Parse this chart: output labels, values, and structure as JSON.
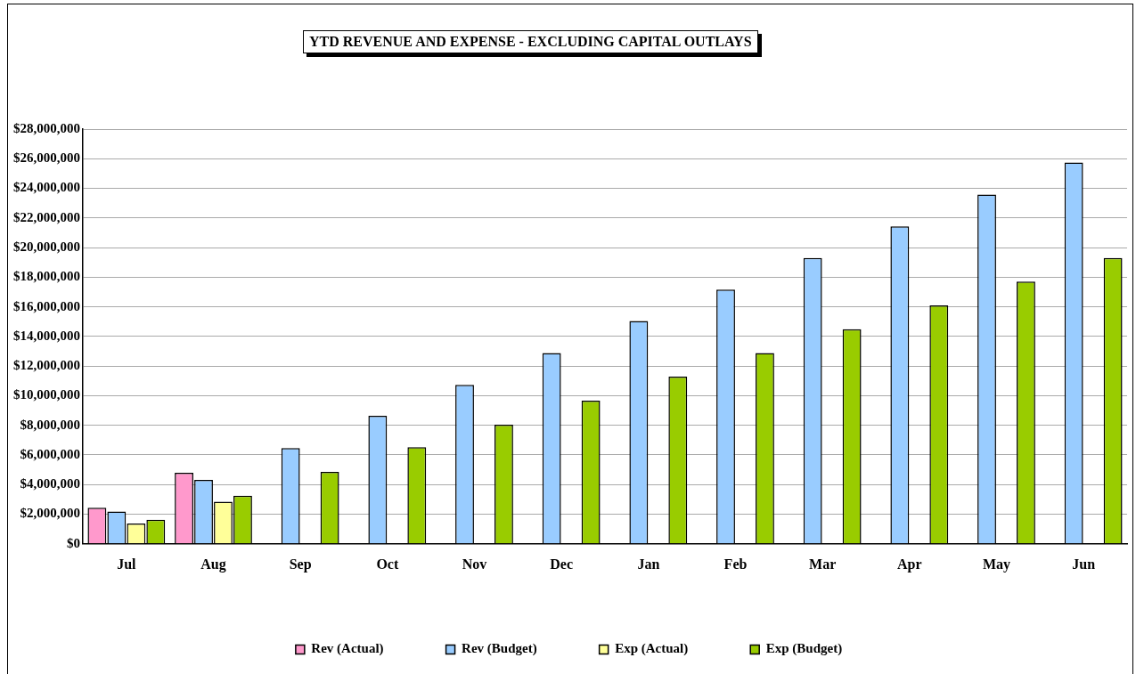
{
  "chart_data": {
    "type": "bar",
    "title": "YTD REVENUE AND EXPENSE - EXCLUDING CAPITAL OUTLAYS",
    "categories": [
      "Jul",
      "Aug",
      "Sep",
      "Oct",
      "Nov",
      "Dec",
      "Jan",
      "Feb",
      "Mar",
      "Apr",
      "May",
      "Jun"
    ],
    "series": [
      {
        "name": "Rev (Actual)",
        "color": "#ff99cc",
        "values": [
          2440000,
          4800000,
          null,
          null,
          null,
          null,
          null,
          null,
          null,
          null,
          null,
          null
        ]
      },
      {
        "name": "Rev (Budget)",
        "color": "#99ccff",
        "values": [
          2180000,
          4310000,
          6470000,
          8650000,
          10740000,
          12880000,
          15040000,
          17170000,
          19300000,
          21440000,
          23580000,
          25740000
        ]
      },
      {
        "name": "Exp (Actual)",
        "color": "#ffff99",
        "values": [
          1370000,
          2840000,
          null,
          null,
          null,
          null,
          null,
          null,
          null,
          null,
          null,
          null
        ]
      },
      {
        "name": "Exp (Budget)",
        "color": "#99cc00",
        "values": [
          1630000,
          3250000,
          4850000,
          6530000,
          8040000,
          9670000,
          11290000,
          12880000,
          14490000,
          16100000,
          17710000,
          19300000
        ]
      }
    ],
    "ylim": [
      0,
      28000000
    ],
    "yticks": [
      {
        "value": 0,
        "label": "$0"
      },
      {
        "value": 2000000,
        "label": "$2,000,000"
      },
      {
        "value": 4000000,
        "label": "$4,000,000"
      },
      {
        "value": 6000000,
        "label": "$6,000,000"
      },
      {
        "value": 8000000,
        "label": "$8,000,000"
      },
      {
        "value": 10000000,
        "label": "$10,000,000"
      },
      {
        "value": 12000000,
        "label": "$12,000,000"
      },
      {
        "value": 14000000,
        "label": "$14,000,000"
      },
      {
        "value": 16000000,
        "label": "$16,000,000"
      },
      {
        "value": 18000000,
        "label": "$18,000,000"
      },
      {
        "value": 20000000,
        "label": "$20,000,000"
      },
      {
        "value": 22000000,
        "label": "$22,000,000"
      },
      {
        "value": 24000000,
        "label": "$24,000,000"
      },
      {
        "value": 26000000,
        "label": "$26,000,000"
      },
      {
        "value": 28000000,
        "label": "$28,000,000"
      }
    ],
    "grid": "y",
    "legend": "bottom"
  }
}
